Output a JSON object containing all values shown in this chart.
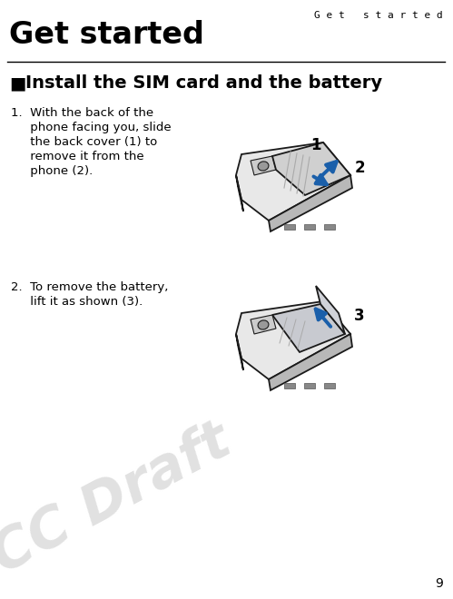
{
  "bg_color": "#ffffff",
  "header_text": "G e t   s t a r t e d",
  "title_text": "Get started",
  "section_bullet": "■",
  "section_title": "Install the SIM card and the battery",
  "step1_lines": [
    "1.  With the back of the",
    "     phone facing you, slide",
    "     the back cover (1) to",
    "     remove it from the",
    "     phone (2)."
  ],
  "step2_lines": [
    "2.  To remove the battery,",
    "     lift it as shown (3)."
  ],
  "draft_text": "FCC Draft",
  "page_number": "9",
  "draft_color": "#c8c8c8",
  "body_color": "#000000",
  "arrow_color": "#1a5faa",
  "phone_outline_color": "#1a1a1a",
  "phone_body_light": "#f0f0f0",
  "phone_body_mid": "#d8d8d8",
  "phone_body_dark": "#b0b0b0",
  "phone_cover_color": "#c8c8c8",
  "phone_inner_color": "#d0d2d8"
}
